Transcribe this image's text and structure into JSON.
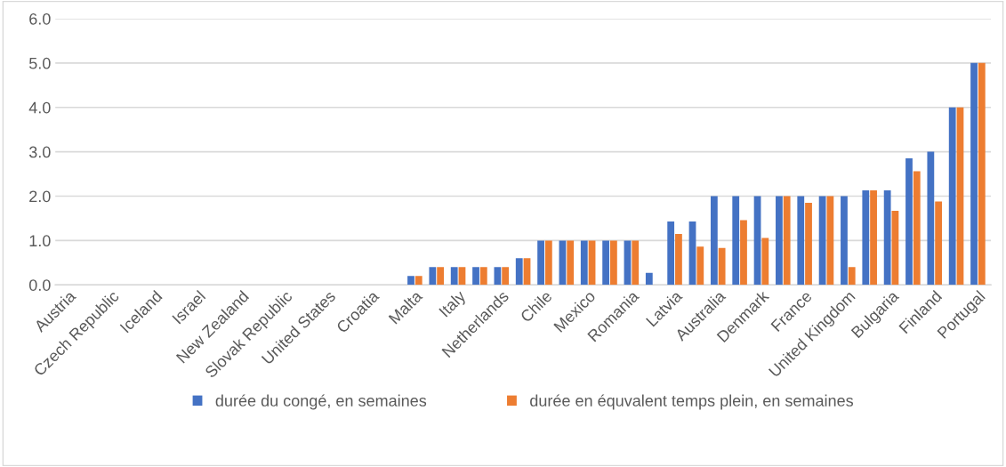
{
  "chart_data": {
    "type": "bar",
    "categories": [
      "Austria",
      null,
      "Czech Republic",
      null,
      "Iceland",
      null,
      "Israel",
      null,
      "New Zealand",
      null,
      "Slovak Republic",
      null,
      "United States",
      null,
      "Croatia",
      null,
      "Malta",
      null,
      "Italy",
      null,
      "Netherlands",
      null,
      "Chile",
      null,
      "Mexico",
      null,
      "Romania",
      null,
      "Latvia",
      null,
      "Australia",
      null,
      "Denmark",
      null,
      "France",
      null,
      "United Kingdom",
      null,
      "Bulgaria",
      null,
      "Finland",
      null,
      "Portugal"
    ],
    "series": [
      {
        "name": "durée du congé, en semaines",
        "color": "#4472c4",
        "values": [
          null,
          null,
          null,
          null,
          null,
          null,
          null,
          null,
          null,
          null,
          null,
          null,
          null,
          null,
          null,
          null,
          0.2,
          0.4,
          0.4,
          0.4,
          0.4,
          0.6,
          1,
          1,
          1,
          1,
          1,
          0.27,
          1.43,
          1.43,
          2,
          2,
          2,
          2,
          2,
          2,
          2,
          2.13,
          2.13,
          2.85,
          3,
          4,
          5
        ]
      },
      {
        "name": "durée en équvalent temps plein, en semaines",
        "color": "#ed7d31",
        "values": [
          null,
          null,
          null,
          null,
          null,
          null,
          null,
          null,
          null,
          null,
          null,
          null,
          null,
          null,
          null,
          null,
          0.2,
          0.4,
          0.4,
          0.4,
          0.4,
          0.6,
          1,
          1,
          1,
          1,
          1,
          null,
          1.15,
          0.86,
          0.83,
          1.46,
          1.06,
          2,
          1.85,
          2,
          0.4,
          2.13,
          1.67,
          2.56,
          1.88,
          4,
          5
        ]
      }
    ],
    "ylim": [
      0,
      6
    ],
    "yticks": [
      {
        "value": 0,
        "label": "0.0"
      },
      {
        "value": 1,
        "label": "1.0"
      },
      {
        "value": 2,
        "label": "2.0"
      },
      {
        "value": 3,
        "label": "3.0"
      },
      {
        "value": 4,
        "label": "4.0"
      },
      {
        "value": 5,
        "label": "5.0"
      },
      {
        "value": 6,
        "label": "6.0"
      }
    ],
    "grid": "y",
    "legend": "bottom"
  }
}
